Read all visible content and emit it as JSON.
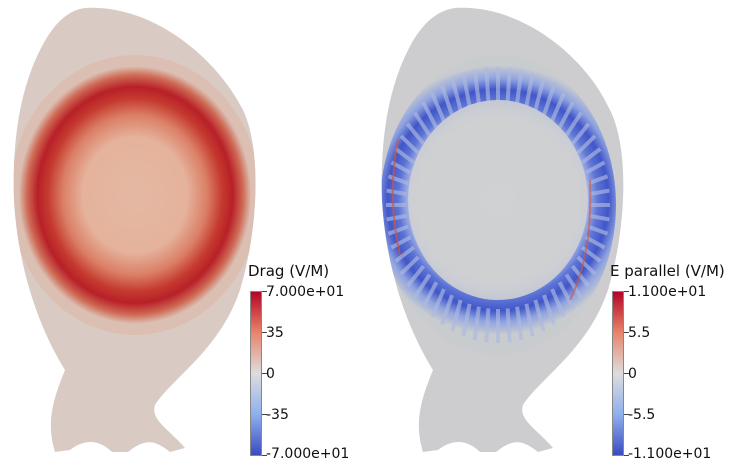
{
  "left_plot": {
    "colorbar_title": "Drag (V/M)",
    "ticks": [
      "7.000e+01",
      "35",
      "0",
      "-35",
      "-7.000e+01"
    ]
  },
  "right_plot": {
    "colorbar_title": "E parallel (V/M)",
    "ticks": [
      "1.100e+01",
      "5.5",
      "0",
      "-5.5",
      "-1.100e+01"
    ]
  },
  "colormap": {
    "high": "#b40426",
    "mid": "#dddddd",
    "low": "#3b4cc0"
  }
}
